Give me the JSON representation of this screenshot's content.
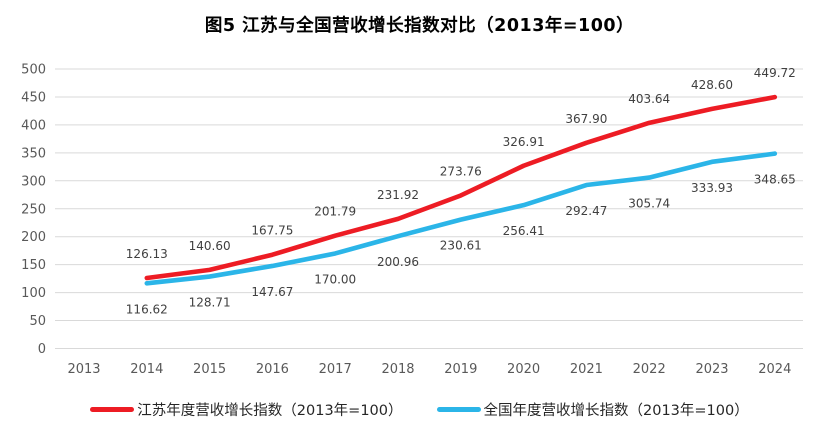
{
  "chart_data": {
    "type": "line",
    "title": "图5  江苏与全国营收增长指数对比（2013年=100）",
    "x_categories": [
      "2013",
      "2014",
      "2015",
      "2016",
      "2017",
      "2018",
      "2019",
      "2020",
      "2021",
      "2022",
      "2023",
      "2024"
    ],
    "y_ticks": [
      0,
      50,
      100,
      150,
      200,
      250,
      300,
      350,
      400,
      450,
      500
    ],
    "ylim": [
      0,
      500
    ],
    "grid": true,
    "legend_position": "bottom",
    "axis_color": "#595959",
    "gridline_color": "#d9d9d9",
    "data_label_color": "#404040",
    "series": [
      {
        "name": "江苏年度营收增长指数（2013年=100）",
        "color": "#ed1c24",
        "start_index": 1,
        "label_position": "above",
        "values": [
          126.13,
          140.6,
          167.75,
          201.79,
          231.92,
          273.76,
          326.91,
          367.9,
          403.64,
          428.6,
          449.72
        ],
        "labels": [
          "126.13",
          "140.60",
          "167.75",
          "201.79",
          "231.92",
          "273.76",
          "326.91",
          "367.90",
          "403.64",
          "428.60",
          "449.72"
        ]
      },
      {
        "name": "全国年度营收增长指数（2013年=100）",
        "color": "#2bb5e8",
        "start_index": 1,
        "label_position": "below",
        "values": [
          116.62,
          128.71,
          147.67,
          170.0,
          200.96,
          230.61,
          256.41,
          292.47,
          305.74,
          333.93,
          348.65
        ],
        "labels": [
          "116.62",
          "128.71",
          "147.67",
          "170.00",
          "200.96",
          "230.61",
          "256.41",
          "292.47",
          "305.74",
          "333.93",
          "348.65"
        ]
      }
    ]
  }
}
